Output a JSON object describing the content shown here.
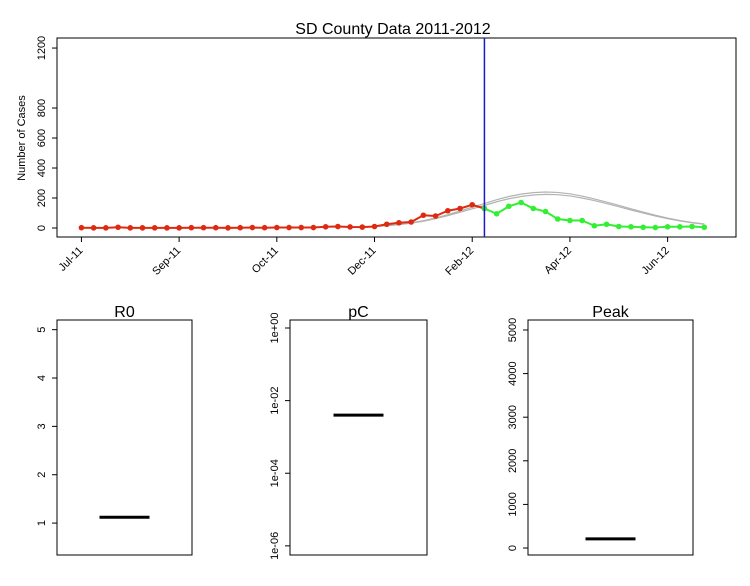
{
  "chart_data": [
    {
      "type": "line",
      "title": "SD County Data 2011-2012",
      "y_label": "Number of Cases",
      "x": [
        0,
        1,
        2,
        3,
        4,
        5,
        6,
        7,
        8,
        9,
        10,
        11,
        12,
        13,
        14,
        15,
        16,
        17,
        18,
        19,
        20,
        21,
        22,
        23,
        24,
        25,
        26,
        27,
        28,
        29,
        30,
        31,
        32,
        33,
        34,
        35,
        36,
        37,
        38,
        39,
        40,
        41,
        42,
        43,
        44,
        45,
        46,
        47,
        48,
        49,
        50,
        51
      ],
      "xlim": [
        -2,
        53.6
      ],
      "xticks": [
        {
          "value": 0,
          "label": "Jul-11"
        },
        {
          "value": 8,
          "label": "Sep-11"
        },
        {
          "value": 16,
          "label": "Oct-11"
        },
        {
          "value": 24,
          "label": "Dec-11"
        },
        {
          "value": 32,
          "label": "Feb-12"
        },
        {
          "value": 40,
          "label": "Apr-12"
        },
        {
          "value": 48,
          "label": "Jun-12"
        }
      ],
      "ylim": [
        -60,
        1267
      ],
      "yticks": [
        0,
        200,
        400,
        600,
        800,
        1200
      ],
      "vline_x": 33,
      "vline_color": "#1a1acc",
      "series": [
        {
          "color": "#b3b3b3",
          "markers": false,
          "values": [
            null,
            null,
            null,
            null,
            null,
            null,
            null,
            null,
            null,
            null,
            null,
            null,
            null,
            null,
            null,
            null,
            null,
            null,
            null,
            null,
            null,
            null,
            null,
            null,
            10,
            15,
            22,
            32,
            45,
            62,
            82,
            105,
            128,
            150,
            175,
            195,
            210,
            220,
            224,
            222,
            214,
            200,
            183,
            163,
            142,
            120,
            100,
            80,
            62,
            47,
            35,
            25
          ]
        },
        {
          "color": "#b3b3b3",
          "markers": false,
          "values": [
            null,
            null,
            null,
            null,
            null,
            null,
            null,
            null,
            null,
            null,
            null,
            null,
            null,
            null,
            null,
            null,
            null,
            null,
            null,
            null,
            null,
            null,
            null,
            null,
            10,
            16,
            24,
            35,
            49,
            67,
            89,
            114,
            139,
            163,
            189,
            210,
            226,
            236,
            240,
            237,
            228,
            213,
            194,
            173,
            151,
            128,
            106,
            85,
            66,
            50,
            37,
            27
          ]
        },
        {
          "color": "#dd2a10",
          "markers": true,
          "values": [
            2,
            1,
            1,
            5,
            1,
            1,
            1,
            1,
            1,
            2,
            2,
            2,
            1,
            2,
            3,
            2,
            3,
            3,
            3,
            3,
            8,
            10,
            7,
            6,
            10,
            25,
            35,
            40,
            85,
            80,
            115,
            130,
            155,
            130,
            null,
            null,
            null,
            null,
            null,
            null,
            null,
            null,
            null,
            null,
            null,
            null,
            null,
            null,
            null,
            null,
            null,
            null
          ]
        },
        {
          "color": "#33ee33",
          "markers": true,
          "values": [
            null,
            null,
            null,
            null,
            null,
            null,
            null,
            null,
            null,
            null,
            null,
            null,
            null,
            null,
            null,
            null,
            null,
            null,
            null,
            null,
            null,
            null,
            null,
            null,
            null,
            null,
            null,
            null,
            null,
            null,
            null,
            null,
            null,
            130,
            95,
            145,
            170,
            130,
            110,
            60,
            50,
            50,
            15,
            25,
            10,
            8,
            5,
            3,
            8,
            8,
            10,
            5
          ]
        }
      ]
    },
    {
      "type": "box",
      "title": "R0",
      "median": 1.12,
      "ylim": [
        0.34,
        5.2
      ],
      "yticks": [
        1,
        2,
        3,
        4,
        5
      ]
    },
    {
      "type": "box",
      "title": "pC",
      "median": 0.004,
      "log_scale": true,
      "ylim": [
        5.6e-07,
        1.66
      ],
      "yticks": [
        {
          "value": 1e-06,
          "label": "1e-06"
        },
        {
          "value": 0.0001,
          "label": "1e-04"
        },
        {
          "value": 0.01,
          "label": "1e-02"
        },
        {
          "value": 1,
          "label": "1e+00"
        }
      ]
    },
    {
      "type": "box",
      "title": "Peak",
      "median": 210,
      "ylim": [
        -160,
        5229
      ],
      "yticks": [
        0,
        1000,
        2000,
        3000,
        4000,
        5000
      ]
    }
  ]
}
